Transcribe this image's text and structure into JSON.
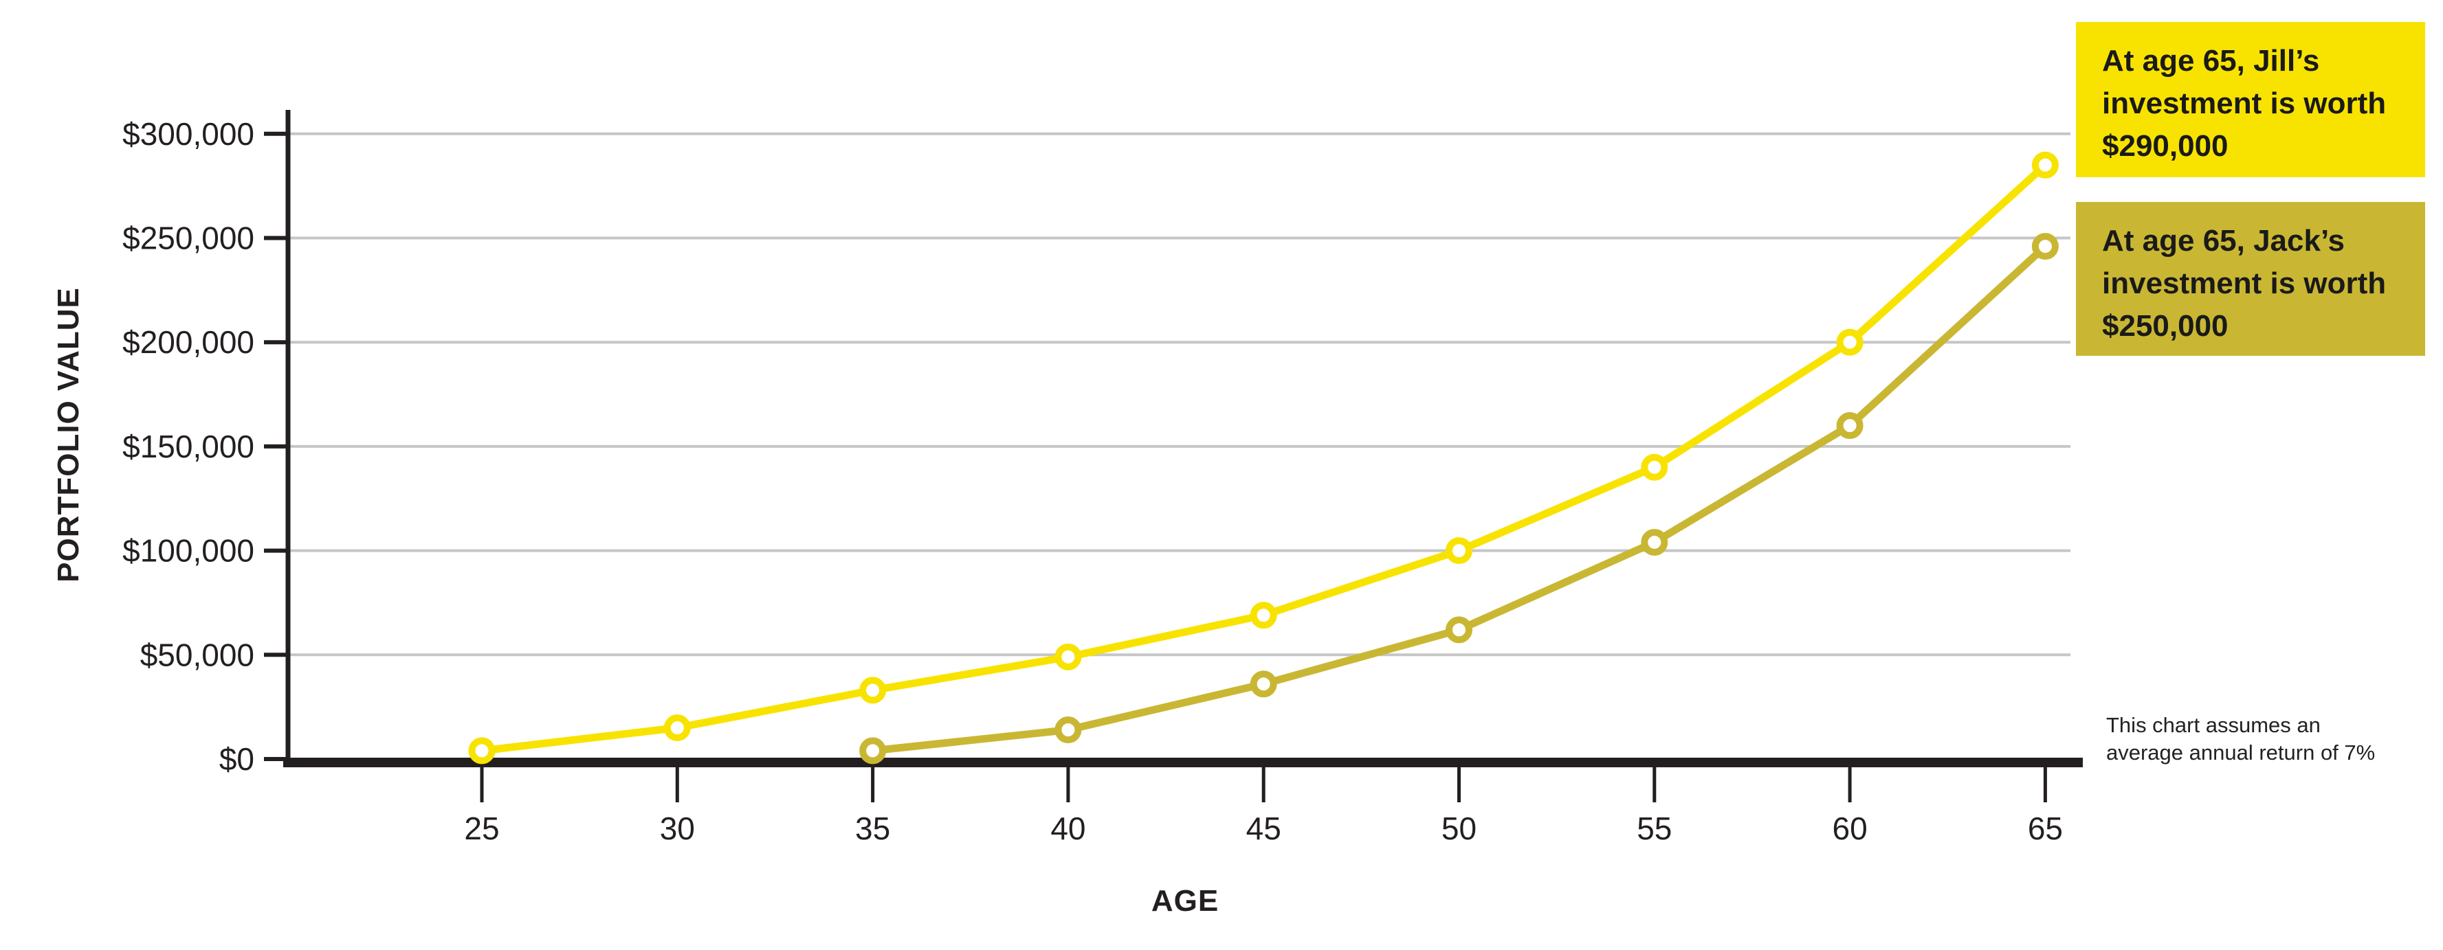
{
  "chart_data": {
    "type": "line",
    "title": "",
    "xlabel": "AGE",
    "ylabel": "PORTFOLIO VALUE",
    "x": [
      25,
      30,
      35,
      40,
      45,
      50,
      55,
      60,
      65
    ],
    "x_tick_labels": [
      "25",
      "30",
      "35",
      "40",
      "45",
      "50",
      "55",
      "60",
      "65"
    ],
    "y_ticks": [
      0,
      50000,
      100000,
      150000,
      200000,
      250000,
      300000
    ],
    "y_tick_labels": [
      "$0",
      "$50,000",
      "$100,000",
      "$150,000",
      "$200,000",
      "$250,000",
      "$300,000"
    ],
    "xlim": [
      25,
      65
    ],
    "ylim": [
      0,
      300000
    ],
    "grid": "horizontal-gridlines",
    "legend": "none",
    "axis_color": "#231f20",
    "gridline_color": "#c6c6c6",
    "series": [
      {
        "name": "Jill",
        "color": "#f8e300",
        "marker": "open-circle",
        "values": [
          4000,
          15000,
          33000,
          49000,
          69000,
          100000,
          140000,
          200000,
          285000
        ]
      },
      {
        "name": "Jack",
        "color": "#c9b733",
        "marker": "open-circle",
        "values": [
          null,
          null,
          4000,
          14000,
          36000,
          62000,
          104000,
          160000,
          246000
        ]
      }
    ],
    "annotations": [
      {
        "id": "jill",
        "bg": "#f8e300",
        "lines": [
          "At age 65, Jill’s",
          "investment is worth",
          "$290,000"
        ]
      },
      {
        "id": "jack",
        "bg": "#c9b733",
        "lines": [
          "At age 65, Jack’s",
          "investment is worth",
          "$250,000"
        ]
      }
    ],
    "note": {
      "lines": [
        "This chart assumes an",
        "average annual return of 7%"
      ]
    }
  }
}
